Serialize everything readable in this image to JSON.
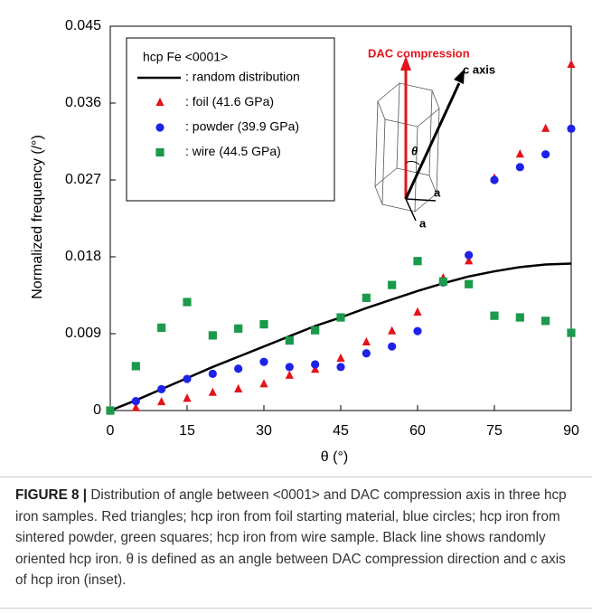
{
  "chart_data": {
    "type": "scatter",
    "legend_title": "hcp Fe <0001>",
    "xlabel": "θ (°)",
    "ylabel": "Normalized frequency (/°)",
    "x": [
      0,
      5,
      10,
      15,
      20,
      25,
      30,
      35,
      40,
      45,
      50,
      55,
      60,
      65,
      70,
      75,
      80,
      85,
      90
    ],
    "series": [
      {
        "name": ": random distribution",
        "color": "#000000",
        "marker": "line",
        "values": [
          0,
          0.0012,
          0.0025,
          0.0038,
          0.0051,
          0.0063,
          0.0075,
          0.0087,
          0.0099,
          0.0109,
          0.012,
          0.013,
          0.014,
          0.0149,
          0.0157,
          0.0163,
          0.0168,
          0.0171,
          0.0172
        ]
      },
      {
        "name": ": foil (41.6 GPa)",
        "color": "#e3141b",
        "marker": "triangle",
        "values": [
          0,
          0.0003,
          0.001,
          0.0014,
          0.0021,
          0.0025,
          0.0031,
          0.0041,
          0.0048,
          0.0061,
          0.008,
          0.0093,
          0.0115,
          0.0155,
          0.0175,
          0.0272,
          0.03,
          0.033,
          0.0405
        ]
      },
      {
        "name": ": powder (39.9 GPa)",
        "color": "#1e22e6",
        "marker": "circle",
        "values": [
          0,
          0.0011,
          0.0025,
          0.0037,
          0.0043,
          0.0049,
          0.0057,
          0.0051,
          0.0054,
          0.0051,
          0.0067,
          0.0075,
          0.0093,
          0.015,
          0.0182,
          0.027,
          0.0285,
          0.03,
          0.033
        ]
      },
      {
        "name": ": wire (44.5 GPa)",
        "color": "#1b9a4b",
        "marker": "square",
        "values": [
          0,
          0.0052,
          0.0097,
          0.0127,
          0.0088,
          0.0096,
          0.0101,
          0.0082,
          0.0094,
          0.0109,
          0.0132,
          0.0147,
          0.0175,
          0.0151,
          0.0148,
          0.0111,
          0.0109,
          0.0105,
          0.0091
        ]
      }
    ],
    "xlim": [
      0,
      90
    ],
    "xticks": [
      0,
      15,
      30,
      45,
      60,
      75,
      90
    ],
    "ylim": [
      0,
      0.045
    ],
    "yticks": [
      0,
      0.009,
      0.018,
      0.027,
      0.036,
      0.045
    ],
    "inset": {
      "force": "DAC compression",
      "axis": "c axis",
      "angle": "θ",
      "a1": "a",
      "a2": "a"
    }
  },
  "caption": {
    "label": "FIGURE 8 |",
    "text": "Distribution of angle between <0001> and DAC compression axis in three hcp iron samples. Red triangles; hcp iron from foil starting material, blue circles; hcp iron from sintered powder, green squares; hcp iron from wire sample. Black line shows randomly oriented hcp iron. θ is defined as an angle between DAC compression direction and c axis of hcp iron (inset)."
  }
}
